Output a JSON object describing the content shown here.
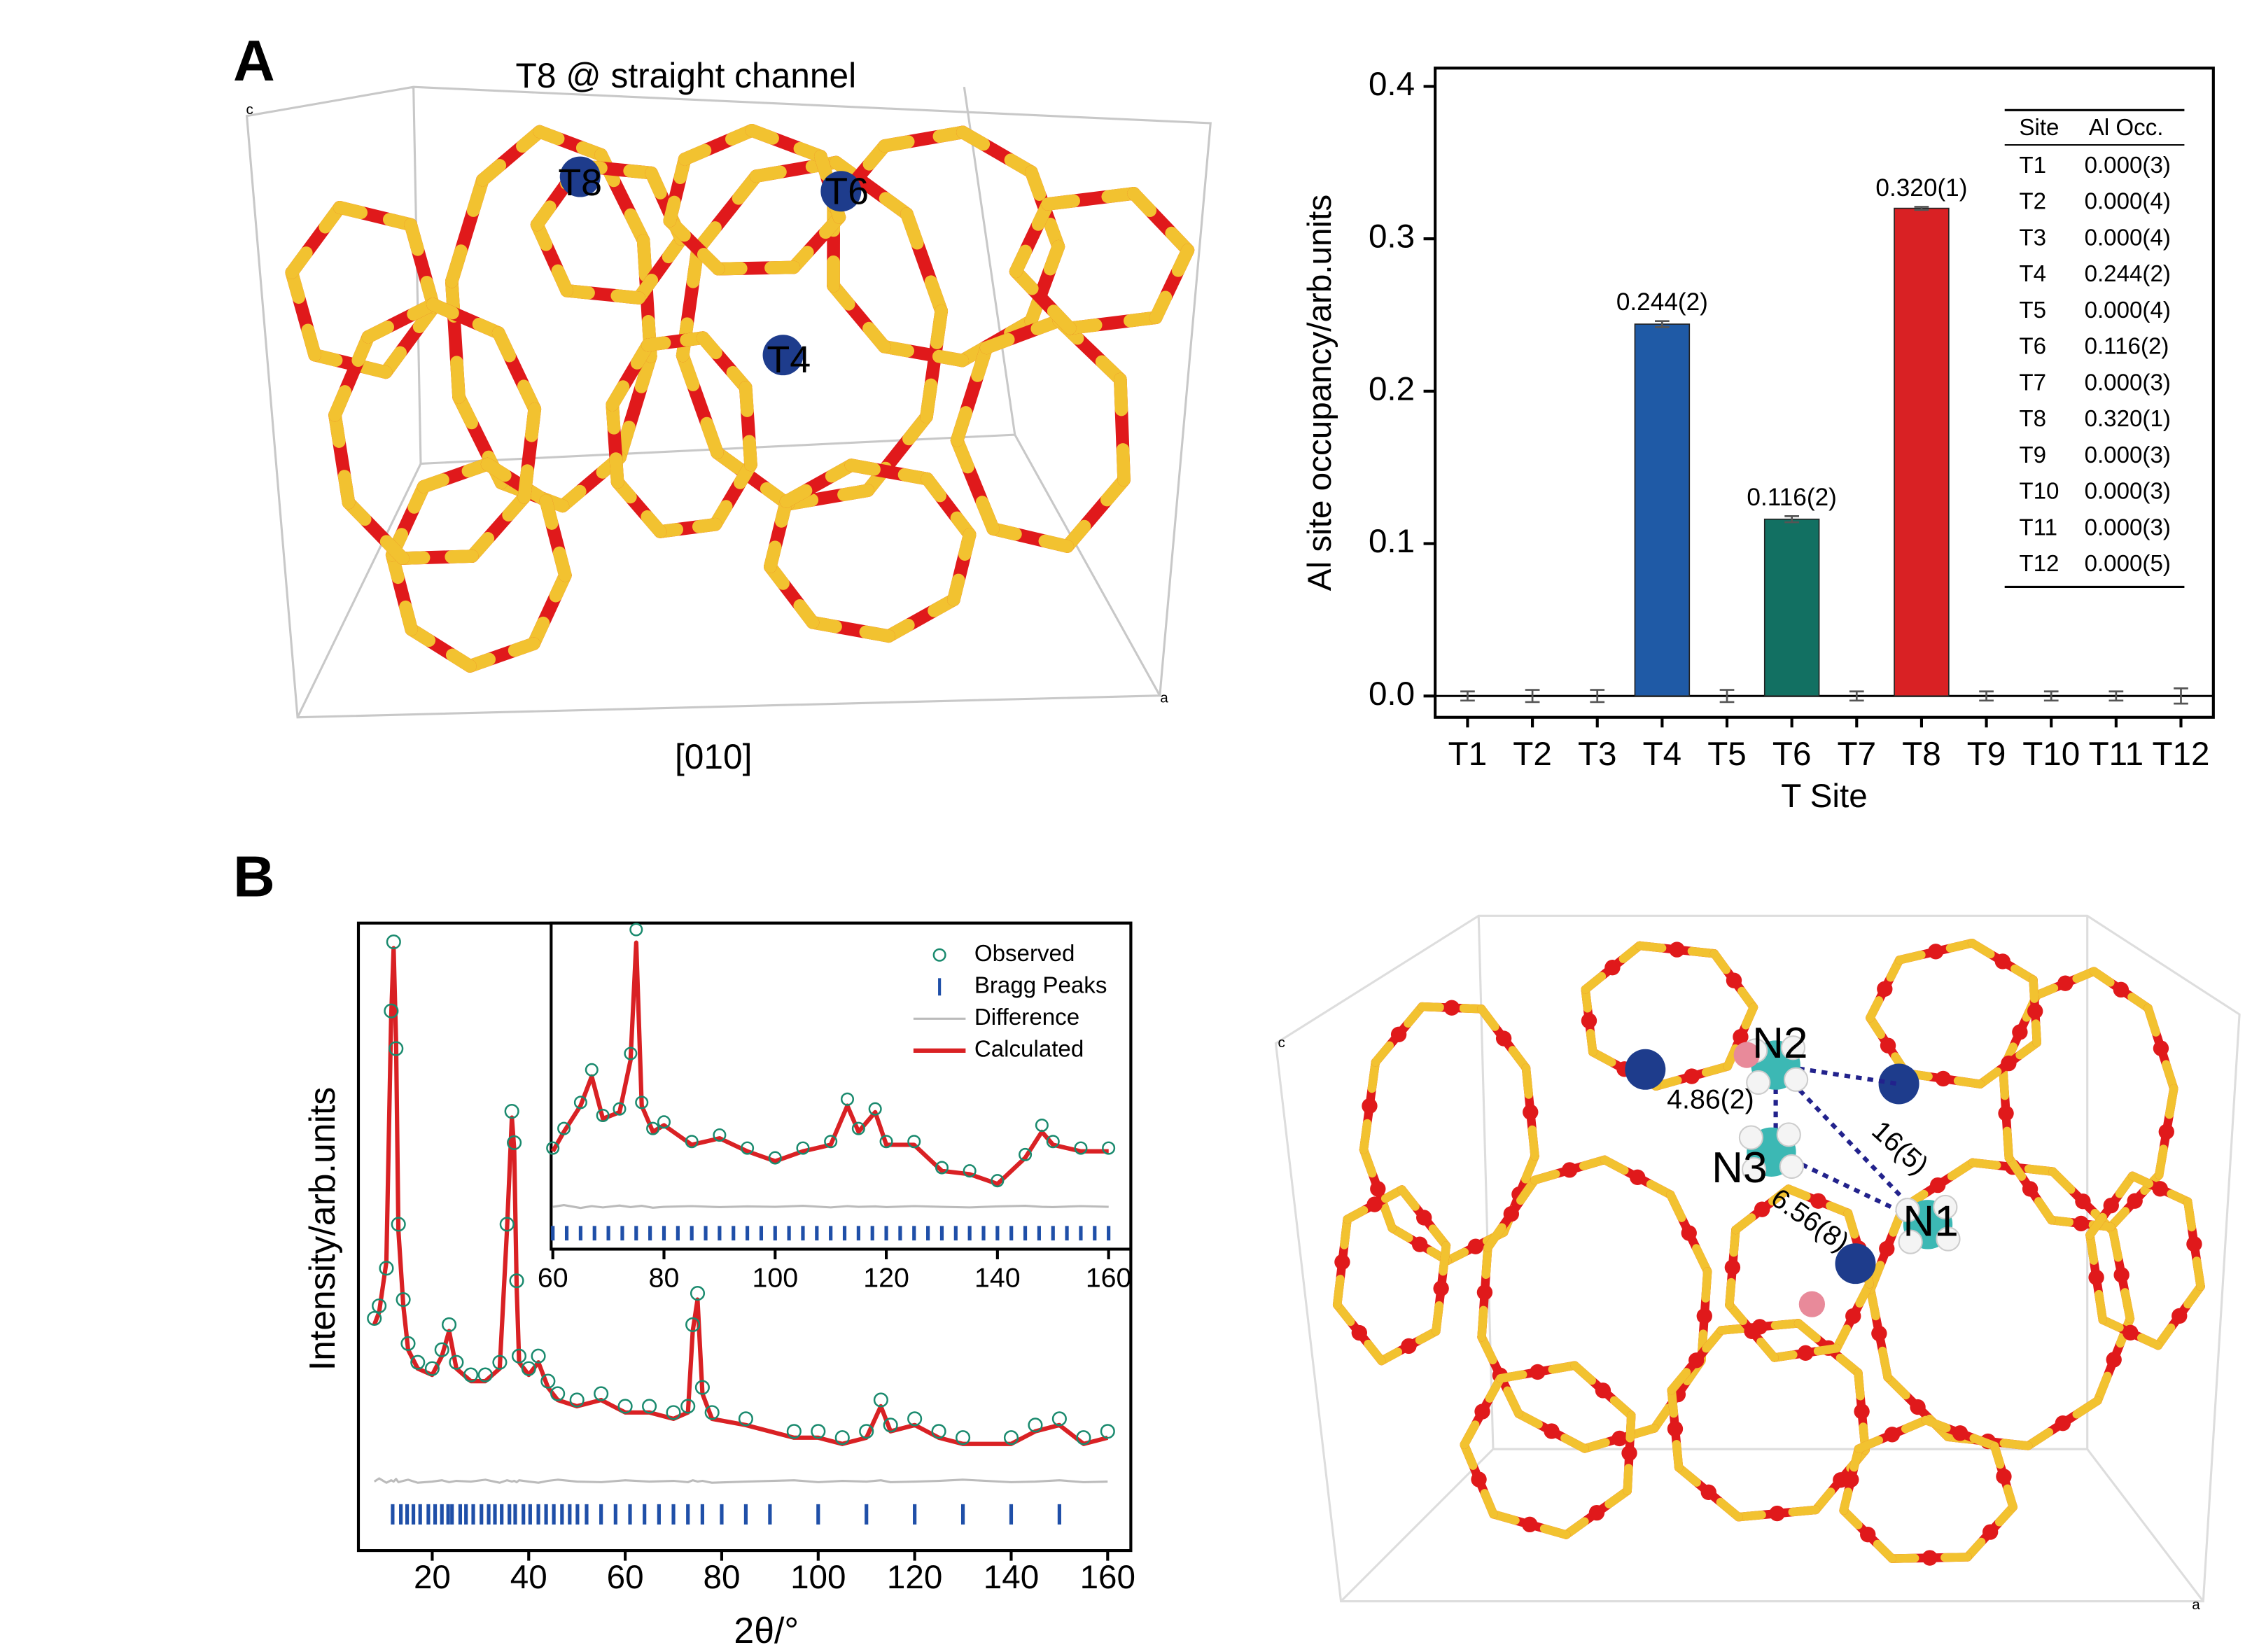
{
  "panel_labels": {
    "a": "A",
    "b": "B"
  },
  "structure_a": {
    "title": "T8 @ straight channel",
    "sites": [
      "T8",
      "T6",
      "T4"
    ],
    "view": "[010]",
    "axis_c": "c",
    "axis_a": "a"
  },
  "structure_b": {
    "nitrogens": [
      "N2",
      "N3",
      "N1"
    ],
    "distances": [
      "4.86(2)",
      "16(5)",
      "6.56(8)"
    ],
    "axis_c": "c",
    "axis_a": "a"
  },
  "chart_data": [
    {
      "type": "bar",
      "x_label": "T Site",
      "y_label": "Al site occupancy/arb.units",
      "categories": [
        "T1",
        "T2",
        "T3",
        "T4",
        "T5",
        "T6",
        "T7",
        "T8",
        "T9",
        "T10",
        "T11",
        "T12"
      ],
      "values": [
        0,
        0,
        0,
        0.244,
        0,
        0.116,
        0,
        0.32,
        0,
        0,
        0,
        0
      ],
      "errors": [
        0.003,
        0.004,
        0.004,
        0.002,
        0.004,
        0.002,
        0.003,
        0.001,
        0.003,
        0.003,
        0.003,
        0.005
      ],
      "value_labels": [
        null,
        null,
        null,
        "0.244(2)",
        null,
        "0.116(2)",
        null,
        "0.320(1)",
        null,
        null,
        null,
        null
      ],
      "colors": [
        "#999999",
        "#999999",
        "#999999",
        "#1f5aa6",
        "#999999",
        "#127062",
        "#999999",
        "#d92124",
        "#999999",
        "#999999",
        "#999999",
        "#999999"
      ],
      "ylim": [
        -0.014,
        0.412
      ],
      "yticks": [
        {
          "value": 0,
          "label": "0.0"
        },
        0.1,
        0.2,
        0.3,
        0.4
      ],
      "table": {
        "header": [
          "Site",
          "Al Occ."
        ],
        "labels": [
          "0.000(3)",
          "0.000(4)",
          "0.000(4)",
          "0.244(2)",
          "0.000(4)",
          "0.116(2)",
          "0.000(3)",
          "0.320(1)",
          "0.000(3)",
          "0.000(3)",
          "0.000(3)",
          "0.000(5)"
        ]
      }
    },
    {
      "type": "xrd",
      "x_label": "2θ/°",
      "y_label": "Intensity/arb.units",
      "xlim": [
        4.7,
        164.8
      ],
      "ylim": [
        0,
        100
      ],
      "xticks": [
        20,
        40,
        60,
        80,
        100,
        120,
        140,
        160
      ],
      "x": [
        8,
        9,
        10.5,
        11.5,
        12,
        12.5,
        13,
        14,
        15,
        17,
        20,
        22,
        23.5,
        25,
        28,
        31,
        34,
        35.5,
        36.5,
        37,
        37.5,
        38,
        40,
        42,
        44,
        46,
        50,
        55,
        60,
        65,
        70,
        73,
        74,
        75,
        76,
        78,
        85,
        95,
        100,
        105,
        110,
        113,
        115,
        120,
        125,
        130,
        140,
        145,
        150,
        155,
        160
      ],
      "series": [
        {
          "name": "Observed",
          "color": "#1a8a6e",
          "mark": "circle",
          "values": [
            37,
            39,
            45,
            86,
            97,
            80,
            52,
            40,
            33,
            30,
            29,
            32,
            36,
            30,
            28,
            28,
            30,
            52,
            70,
            65,
            43,
            31,
            29,
            31,
            27,
            25,
            24,
            25,
            23,
            23,
            22,
            23,
            36,
            41,
            26,
            22,
            21,
            19,
            19,
            18,
            19,
            24,
            20,
            21,
            19,
            18,
            18,
            20,
            21,
            18,
            19
          ]
        },
        {
          "name": "Bragg Peaks",
          "color": "#1f4fa8",
          "mark": "tick",
          "x": [
            11.8,
            13.5,
            14.8,
            16.1,
            17.5,
            19.2,
            20.6,
            22,
            23.3,
            24.1,
            25.8,
            27,
            28.5,
            30.2,
            31.7,
            33,
            34.4,
            36,
            37.2,
            38.9,
            40.3,
            42,
            43.6,
            45.2,
            46.9,
            48.5,
            50.1,
            52,
            55,
            58,
            61,
            64,
            67,
            70,
            73,
            76,
            80,
            85,
            90,
            100,
            110,
            120,
            130,
            140,
            150
          ]
        },
        {
          "name": "Difference",
          "color": "#bbbbbb",
          "mark": "line",
          "values": [
            11,
            11.5,
            10.8,
            11.2,
            11,
            11.4,
            10.9,
            11.1,
            11.3,
            10.8,
            11,
            11.2,
            10.9,
            11.1,
            11,
            11.3,
            10.8,
            11.2,
            11,
            11.1,
            10.9,
            11.2,
            11,
            10.8,
            11.1,
            11.3,
            11,
            10.9,
            11.2,
            11,
            11.1,
            10.9,
            11.2,
            11,
            11.1,
            10.8,
            11,
            11.2,
            10.9,
            11.1,
            11,
            11.2,
            10.9,
            11,
            11.1,
            11.3,
            10.9,
            11,
            11.2,
            10.9,
            11
          ]
        },
        {
          "name": "Calculated",
          "color": "#d92124",
          "mark": "line",
          "values": [
            36,
            38,
            46,
            85,
            96,
            81,
            51,
            39,
            32,
            29,
            28,
            31,
            35,
            29,
            27,
            27,
            29,
            51,
            69,
            64,
            42,
            30,
            28,
            30,
            26,
            24,
            23,
            24,
            22,
            22,
            21,
            22,
            35,
            40,
            25,
            21,
            20,
            18,
            18,
            17,
            18,
            23,
            19,
            20,
            18,
            17,
            17,
            19,
            20,
            17,
            18
          ]
        }
      ]
    },
    {
      "type": "xrd",
      "xlim": [
        59.7,
        164
      ],
      "ylim": [
        0,
        100
      ],
      "xticks": [
        60,
        80,
        100,
        120,
        140,
        160
      ],
      "x": [
        60,
        62,
        65,
        67,
        69,
        72,
        74,
        75,
        76,
        78,
        80,
        85,
        90,
        95,
        100,
        105,
        110,
        113,
        115,
        118,
        120,
        125,
        130,
        135,
        140,
        145,
        148,
        150,
        155,
        160
      ],
      "series": [
        {
          "color": "#1a8a6e",
          "mark": "circle",
          "values": [
            31,
            37,
            45,
            55,
            41,
            43,
            60,
            98,
            45,
            37,
            39,
            33,
            35,
            31,
            28,
            31,
            33,
            46,
            37,
            43,
            33,
            33,
            25,
            24,
            21,
            29,
            38,
            33,
            31,
            31
          ]
        },
        {
          "color": "#1f4fa8",
          "mark": "tick",
          "x": [
            60,
            62.5,
            65,
            67.5,
            70,
            72.5,
            75,
            77.5,
            80,
            82.5,
            85,
            87.5,
            90,
            92.5,
            95,
            97.5,
            100,
            102.5,
            105,
            107.5,
            110,
            112.5,
            115,
            117.5,
            120,
            122.5,
            125,
            127.5,
            130,
            132.5,
            135,
            137.5,
            140,
            142.5,
            145,
            147.5,
            150,
            152.5,
            155,
            157.5,
            160
          ]
        },
        {
          "color": "#bbbbbb",
          "mark": "line",
          "values": [
            13,
            13.5,
            12.6,
            13.2,
            12.8,
            13.4,
            12.9,
            13.1,
            13.3,
            12.7,
            13,
            13.2,
            12.9,
            13.1,
            13,
            13.3,
            12.8,
            13.2,
            13,
            13.1,
            12.9,
            13.2,
            13,
            12.8,
            13.1,
            13.3,
            13,
            12.9,
            13.2,
            13
          ]
        },
        {
          "color": "#d92124",
          "mark": "line",
          "values": [
            30,
            36,
            44,
            53,
            40,
            42,
            58,
            94,
            44,
            36,
            38,
            32,
            34,
            30,
            27,
            30,
            32,
            44,
            36,
            42,
            32,
            32,
            24,
            23,
            20,
            28,
            36,
            32,
            30,
            30
          ]
        }
      ]
    }
  ]
}
